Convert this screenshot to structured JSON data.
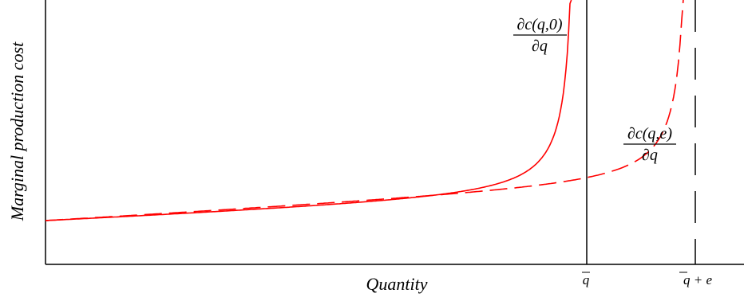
{
  "chart_data": {
    "type": "line",
    "title": "",
    "xlabel": "Quantity",
    "ylabel": "Marginal production cost",
    "grid": false,
    "legend": "none",
    "x_ticks": [
      {
        "label_main": "q",
        "label_suffix": "",
        "overline": true,
        "line_style": "solid"
      },
      {
        "label_main": "q",
        "label_suffix": " + e",
        "overline": true,
        "line_style": "dashed"
      }
    ],
    "series": [
      {
        "label_top": "∂c(q,0)",
        "label_bottom": "∂q",
        "color": "#ff0000",
        "style": "solid",
        "capacity_tick_index": 0
      },
      {
        "label_top": "∂c(q,e)",
        "label_bottom": "∂q",
        "color": "#ff0000",
        "style": "dashed",
        "capacity_tick_index": 1
      }
    ],
    "axis_color": "#000000"
  }
}
